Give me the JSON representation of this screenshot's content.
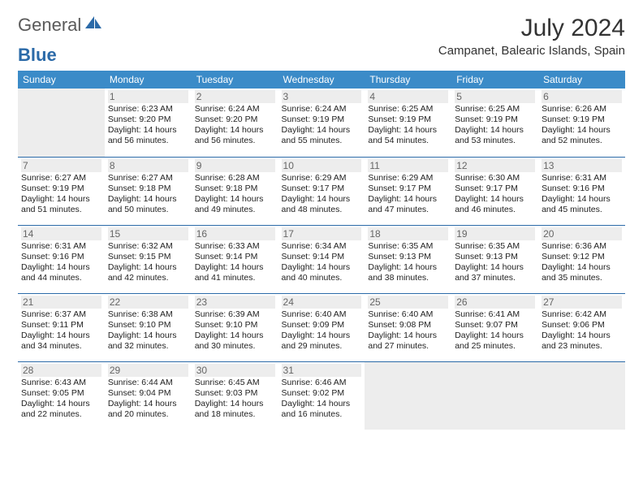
{
  "brand": {
    "part1": "General",
    "part2": "Blue",
    "icon_color": "#2b6aa8",
    "text_gray": "#5a5a5a"
  },
  "title": "July 2024",
  "location": "Campanet, Balearic Islands, Spain",
  "header_bg": "#3b8bc8",
  "border_color": "#2b6aa8",
  "empty_bg": "#ededed",
  "day_labels": [
    "Sunday",
    "Monday",
    "Tuesday",
    "Wednesday",
    "Thursday",
    "Friday",
    "Saturday"
  ],
  "weeks": [
    [
      null,
      {
        "n": "1",
        "sr": "6:23 AM",
        "ss": "9:20 PM",
        "dl": "14 hours and 56 minutes."
      },
      {
        "n": "2",
        "sr": "6:24 AM",
        "ss": "9:20 PM",
        "dl": "14 hours and 56 minutes."
      },
      {
        "n": "3",
        "sr": "6:24 AM",
        "ss": "9:19 PM",
        "dl": "14 hours and 55 minutes."
      },
      {
        "n": "4",
        "sr": "6:25 AM",
        "ss": "9:19 PM",
        "dl": "14 hours and 54 minutes."
      },
      {
        "n": "5",
        "sr": "6:25 AM",
        "ss": "9:19 PM",
        "dl": "14 hours and 53 minutes."
      },
      {
        "n": "6",
        "sr": "6:26 AM",
        "ss": "9:19 PM",
        "dl": "14 hours and 52 minutes."
      }
    ],
    [
      {
        "n": "7",
        "sr": "6:27 AM",
        "ss": "9:19 PM",
        "dl": "14 hours and 51 minutes."
      },
      {
        "n": "8",
        "sr": "6:27 AM",
        "ss": "9:18 PM",
        "dl": "14 hours and 50 minutes."
      },
      {
        "n": "9",
        "sr": "6:28 AM",
        "ss": "9:18 PM",
        "dl": "14 hours and 49 minutes."
      },
      {
        "n": "10",
        "sr": "6:29 AM",
        "ss": "9:17 PM",
        "dl": "14 hours and 48 minutes."
      },
      {
        "n": "11",
        "sr": "6:29 AM",
        "ss": "9:17 PM",
        "dl": "14 hours and 47 minutes."
      },
      {
        "n": "12",
        "sr": "6:30 AM",
        "ss": "9:17 PM",
        "dl": "14 hours and 46 minutes."
      },
      {
        "n": "13",
        "sr": "6:31 AM",
        "ss": "9:16 PM",
        "dl": "14 hours and 45 minutes."
      }
    ],
    [
      {
        "n": "14",
        "sr": "6:31 AM",
        "ss": "9:16 PM",
        "dl": "14 hours and 44 minutes."
      },
      {
        "n": "15",
        "sr": "6:32 AM",
        "ss": "9:15 PM",
        "dl": "14 hours and 42 minutes."
      },
      {
        "n": "16",
        "sr": "6:33 AM",
        "ss": "9:14 PM",
        "dl": "14 hours and 41 minutes."
      },
      {
        "n": "17",
        "sr": "6:34 AM",
        "ss": "9:14 PM",
        "dl": "14 hours and 40 minutes."
      },
      {
        "n": "18",
        "sr": "6:35 AM",
        "ss": "9:13 PM",
        "dl": "14 hours and 38 minutes."
      },
      {
        "n": "19",
        "sr": "6:35 AM",
        "ss": "9:13 PM",
        "dl": "14 hours and 37 minutes."
      },
      {
        "n": "20",
        "sr": "6:36 AM",
        "ss": "9:12 PM",
        "dl": "14 hours and 35 minutes."
      }
    ],
    [
      {
        "n": "21",
        "sr": "6:37 AM",
        "ss": "9:11 PM",
        "dl": "14 hours and 34 minutes."
      },
      {
        "n": "22",
        "sr": "6:38 AM",
        "ss": "9:10 PM",
        "dl": "14 hours and 32 minutes."
      },
      {
        "n": "23",
        "sr": "6:39 AM",
        "ss": "9:10 PM",
        "dl": "14 hours and 30 minutes."
      },
      {
        "n": "24",
        "sr": "6:40 AM",
        "ss": "9:09 PM",
        "dl": "14 hours and 29 minutes."
      },
      {
        "n": "25",
        "sr": "6:40 AM",
        "ss": "9:08 PM",
        "dl": "14 hours and 27 minutes."
      },
      {
        "n": "26",
        "sr": "6:41 AM",
        "ss": "9:07 PM",
        "dl": "14 hours and 25 minutes."
      },
      {
        "n": "27",
        "sr": "6:42 AM",
        "ss": "9:06 PM",
        "dl": "14 hours and 23 minutes."
      }
    ],
    [
      {
        "n": "28",
        "sr": "6:43 AM",
        "ss": "9:05 PM",
        "dl": "14 hours and 22 minutes."
      },
      {
        "n": "29",
        "sr": "6:44 AM",
        "ss": "9:04 PM",
        "dl": "14 hours and 20 minutes."
      },
      {
        "n": "30",
        "sr": "6:45 AM",
        "ss": "9:03 PM",
        "dl": "14 hours and 18 minutes."
      },
      {
        "n": "31",
        "sr": "6:46 AM",
        "ss": "9:02 PM",
        "dl": "14 hours and 16 minutes."
      },
      null,
      null,
      null
    ]
  ],
  "labels": {
    "sunrise": "Sunrise:",
    "sunset": "Sunset:",
    "daylight": "Daylight:"
  }
}
